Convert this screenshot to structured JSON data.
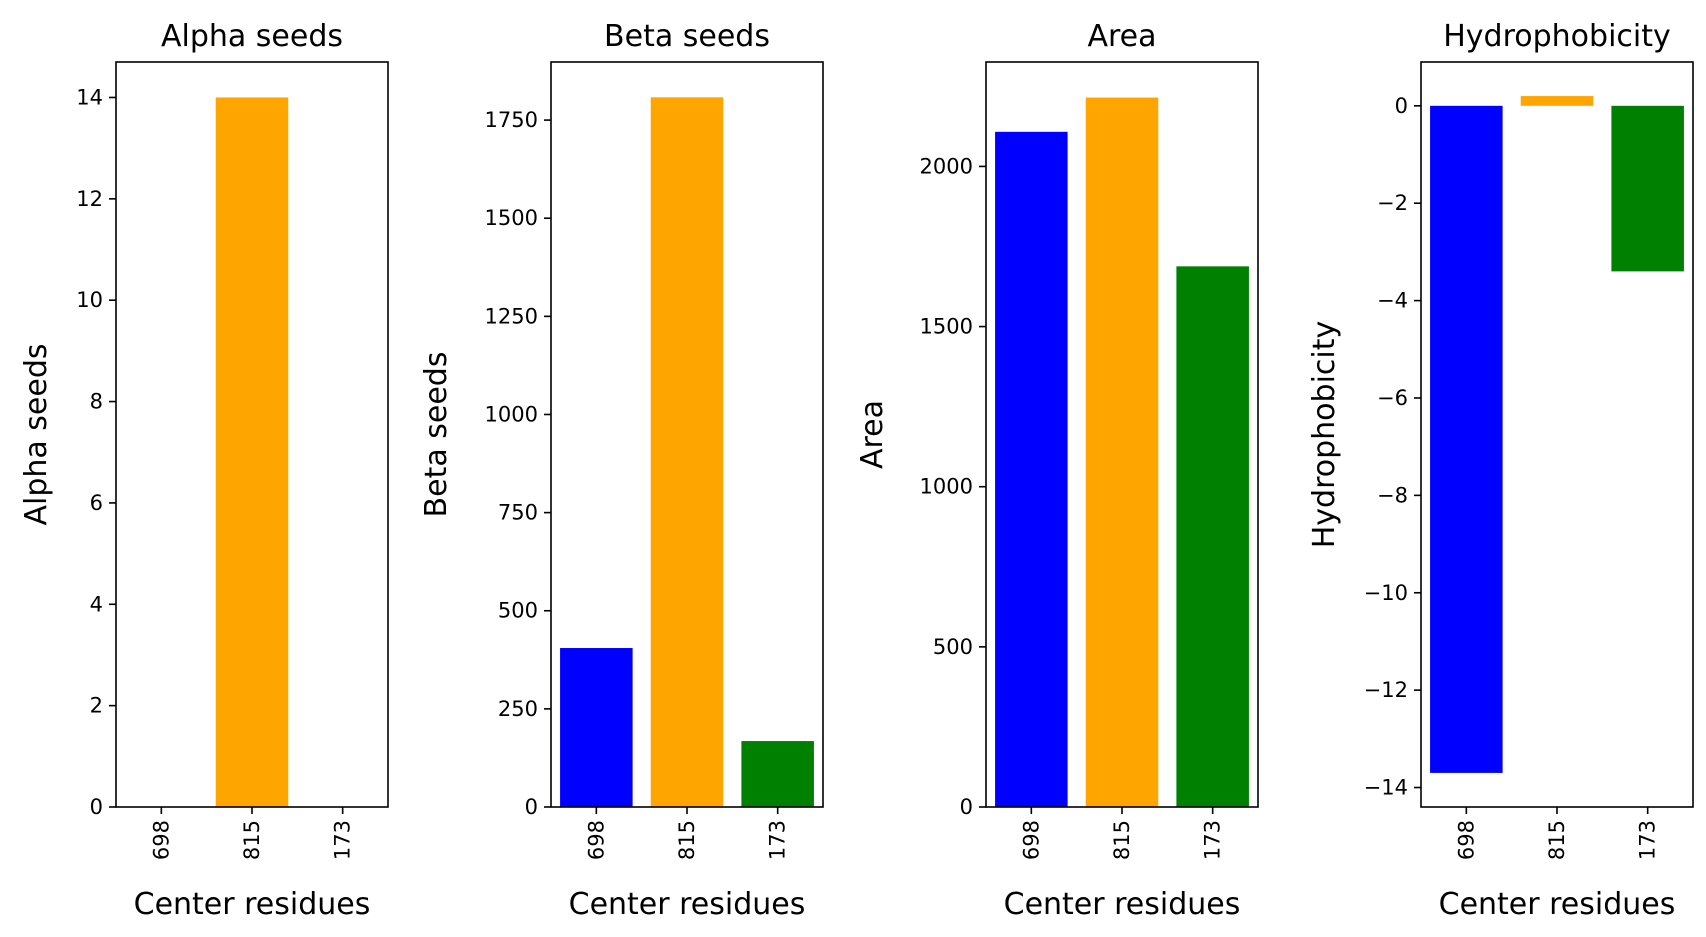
{
  "chart_data": [
    {
      "type": "bar",
      "title": "Alpha seeds",
      "xlabel": "Center residues",
      "ylabel": "Alpha seeds",
      "categories": [
        "698",
        "815",
        "173"
      ],
      "values": [
        0,
        14,
        0
      ],
      "colors": [
        "#0000ff",
        "#ffa500",
        "#008000"
      ],
      "ylim": [
        0,
        14.7
      ],
      "yticks": [
        0,
        2,
        4,
        6,
        8,
        10,
        12,
        14
      ],
      "ytick_labels": [
        "0",
        "2",
        "4",
        "6",
        "8",
        "10",
        "12",
        "14"
      ],
      "grid": false,
      "legend": "none"
    },
    {
      "type": "bar",
      "title": "Beta seeds",
      "xlabel": "Center residues",
      "ylabel": "Beta seeds",
      "categories": [
        "698",
        "815",
        "173"
      ],
      "values": [
        405,
        1808,
        168
      ],
      "colors": [
        "#0000ff",
        "#ffa500",
        "#008000"
      ],
      "ylim": [
        0,
        1898
      ],
      "yticks": [
        0,
        250,
        500,
        750,
        1000,
        1250,
        1500,
        1750
      ],
      "ytick_labels": [
        "0",
        "250",
        "500",
        "750",
        "1000",
        "1250",
        "1500",
        "1750"
      ],
      "grid": false,
      "legend": "none"
    },
    {
      "type": "bar",
      "title": "Area",
      "xlabel": "Center residues",
      "ylabel": "Area",
      "categories": [
        "698",
        "815",
        "173"
      ],
      "values": [
        2108,
        2215,
        1688
      ],
      "colors": [
        "#0000ff",
        "#ffa500",
        "#008000"
      ],
      "ylim": [
        0,
        2326
      ],
      "yticks": [
        0,
        500,
        1000,
        1500,
        2000
      ],
      "ytick_labels": [
        "0",
        "500",
        "1000",
        "1500",
        "2000"
      ],
      "grid": false,
      "legend": "none"
    },
    {
      "type": "bar",
      "title": "Hydrophobicity",
      "xlabel": "Center residues",
      "ylabel": "Hydrophobicity",
      "categories": [
        "698",
        "815",
        "173"
      ],
      "values": [
        -13.7,
        0.2,
        -3.4
      ],
      "colors": [
        "#0000ff",
        "#ffa500",
        "#008000"
      ],
      "ylim": [
        -14.4,
        0.9
      ],
      "yticks": [
        0,
        -2,
        -4,
        -6,
        -8,
        -10,
        -12,
        -14
      ],
      "ytick_labels": [
        "0",
        "−2",
        "−4",
        "−6",
        "−8",
        "−10",
        "−12",
        "−14"
      ],
      "grid": false,
      "legend": "none"
    }
  ]
}
